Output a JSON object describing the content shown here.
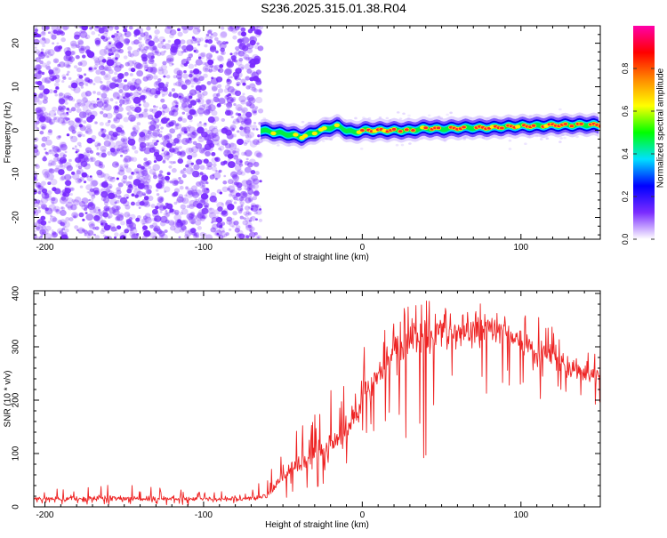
{
  "title": "S236.2025.315.01.38.R04",
  "colors": {
    "snr_line": "#ee2222",
    "scatter_dots": "#7a2cff",
    "axis": "#000000"
  },
  "chart_data": [
    {
      "type": "heatmap",
      "name": "spectrogram",
      "title": "",
      "xlabel": "Height of straight line (km)",
      "ylabel": "Frequency (Hz)",
      "xlim": [
        -207,
        150
      ],
      "ylim": [
        -25,
        24
      ],
      "x_ticks": [
        -200,
        -100,
        0,
        100
      ],
      "x_tick_labels": [
        "-200",
        "-100",
        "0",
        "100"
      ],
      "y_ticks": [
        -20,
        -10,
        0,
        10,
        20
      ],
      "y_tick_labels": [
        "-20",
        "-10",
        "0",
        "10",
        "20"
      ],
      "noise_region_x": [
        -207,
        -64
      ],
      "signal_start_x": -64,
      "signal_track": {
        "x": [
          -64,
          -55,
          -45,
          -38,
          -30,
          -22,
          -15,
          -10,
          -5,
          0,
          10,
          20,
          30,
          40,
          50,
          60,
          70,
          80,
          90,
          100,
          110,
          120,
          130,
          140,
          150
        ],
        "freq": [
          0,
          -0.5,
          -1,
          -1.5,
          -0.5,
          0.5,
          1,
          0,
          -0.5,
          0,
          0,
          0,
          0,
          0.5,
          0.3,
          0.5,
          0.6,
          0.6,
          0.8,
          1,
          1,
          1.2,
          1.2,
          1.3,
          1.2
        ]
      },
      "colorbar": {
        "label": "Normalized spectral amplitude",
        "range": [
          0,
          1
        ],
        "ticks": [
          0.0,
          0.2,
          0.4,
          0.6,
          0.8
        ],
        "tick_labels": [
          "0.0",
          "0.2",
          "0.4",
          "0.6",
          "0.8"
        ],
        "colormap": [
          "#ffffff",
          "#7a2cff",
          "#0000ff",
          "#00e0ff",
          "#00ff00",
          "#ffff00",
          "#ff8800",
          "#ff0000",
          "#ff00aa"
        ]
      }
    },
    {
      "type": "line",
      "name": "snr",
      "title": "",
      "xlabel": "Height of straight line (km)",
      "ylabel": "SNR (10 * v/v)",
      "xlim": [
        -207,
        150
      ],
      "ylim": [
        0,
        405
      ],
      "x_ticks": [
        -200,
        -100,
        0,
        100
      ],
      "x_tick_labels": [
        "-200",
        "-100",
        "0",
        "100"
      ],
      "y_ticks": [
        0,
        100,
        200,
        300,
        400
      ],
      "y_tick_labels": [
        "0",
        "100",
        "200",
        "300",
        "400"
      ],
      "envelope": {
        "x": [
          -207,
          -160,
          -100,
          -70,
          -60,
          -50,
          -40,
          -30,
          -20,
          -10,
          0,
          10,
          20,
          30,
          40,
          50,
          60,
          70,
          80,
          90,
          100,
          110,
          120,
          130,
          140,
          150
        ],
        "mean": [
          15,
          15,
          15,
          15,
          20,
          60,
          80,
          90,
          110,
          150,
          200,
          250,
          290,
          310,
          320,
          330,
          330,
          330,
          330,
          330,
          300,
          290,
          280,
          260,
          250,
          250
        ],
        "upper": [
          30,
          45,
          28,
          30,
          60,
          120,
          150,
          180,
          230,
          280,
          300,
          320,
          360,
          390,
          395,
          395,
          390,
          385,
          385,
          390,
          380,
          370,
          340,
          330,
          320,
          330
        ],
        "lower": [
          3,
          3,
          3,
          3,
          5,
          15,
          25,
          30,
          30,
          50,
          60,
          80,
          60,
          100,
          90,
          120,
          150,
          150,
          180,
          200,
          230,
          200,
          180,
          170,
          180,
          160
        ]
      }
    }
  ]
}
